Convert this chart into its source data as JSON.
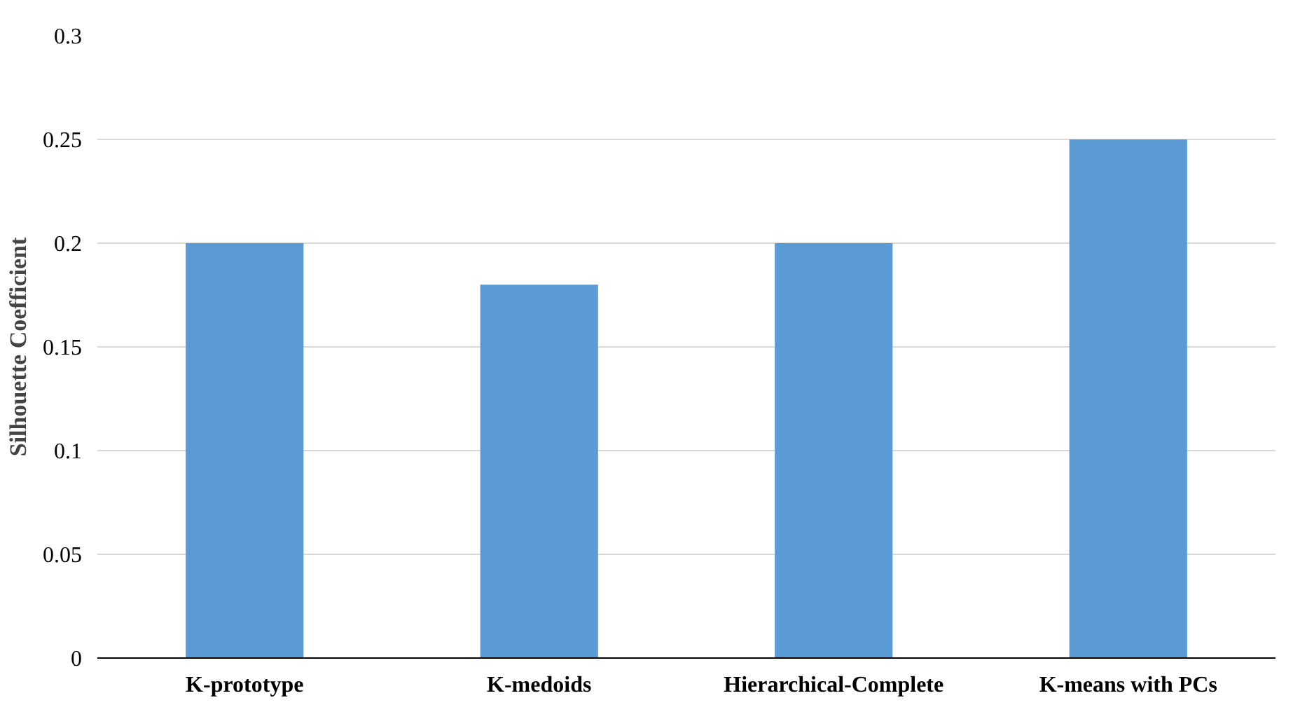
{
  "chart_data": {
    "type": "bar",
    "ylabel": "Silhouette Coefficient",
    "categories": [
      "K-prototype",
      "K-medoids",
      "Hierarchical-Complete",
      "K-means with PCs"
    ],
    "values": [
      0.2,
      0.18,
      0.2,
      0.25
    ],
    "color": "#5b9bd5",
    "ylim": [
      0,
      0.3
    ],
    "yticks": [
      0,
      0.05,
      0.1,
      0.15,
      0.2,
      0.25,
      0.3
    ],
    "grid": "y"
  }
}
